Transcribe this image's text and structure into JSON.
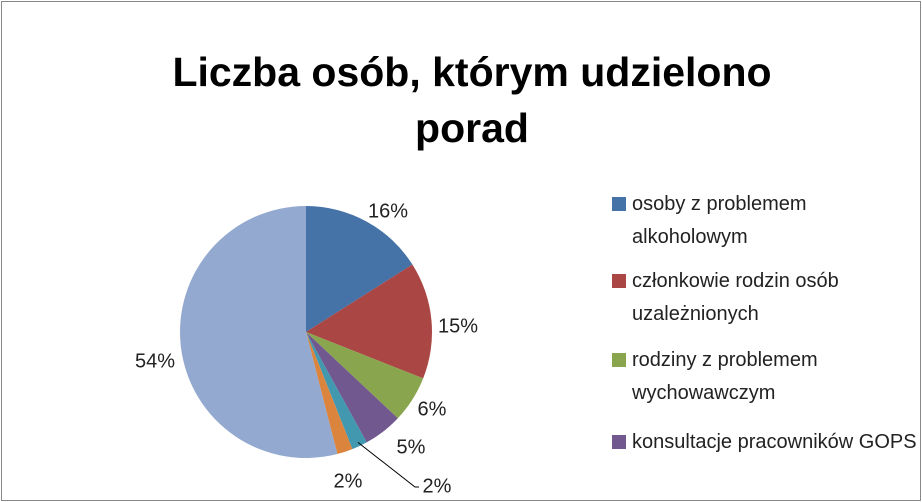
{
  "chart_data": {
    "type": "pie",
    "title": "Liczba osób, którym udzielono porad",
    "categories": [
      "osoby z problemem alkoholowym",
      "członkowie rodzin osób uzależnionych",
      "rodziny z problemem wychowawczym",
      "konsultacje pracowników GOPS",
      null,
      null,
      null
    ],
    "values": [
      16,
      15,
      6,
      5,
      2,
      2,
      54
    ],
    "value_labels": [
      "16%",
      "15%",
      "6%",
      "5%",
      "2%",
      "2%",
      "54%"
    ],
    "colors": [
      "#4572a7",
      "#aa4643",
      "#89a54e",
      "#71588f",
      "#4198af",
      "#db843d",
      "#93a9cf"
    ],
    "legend": "right"
  }
}
